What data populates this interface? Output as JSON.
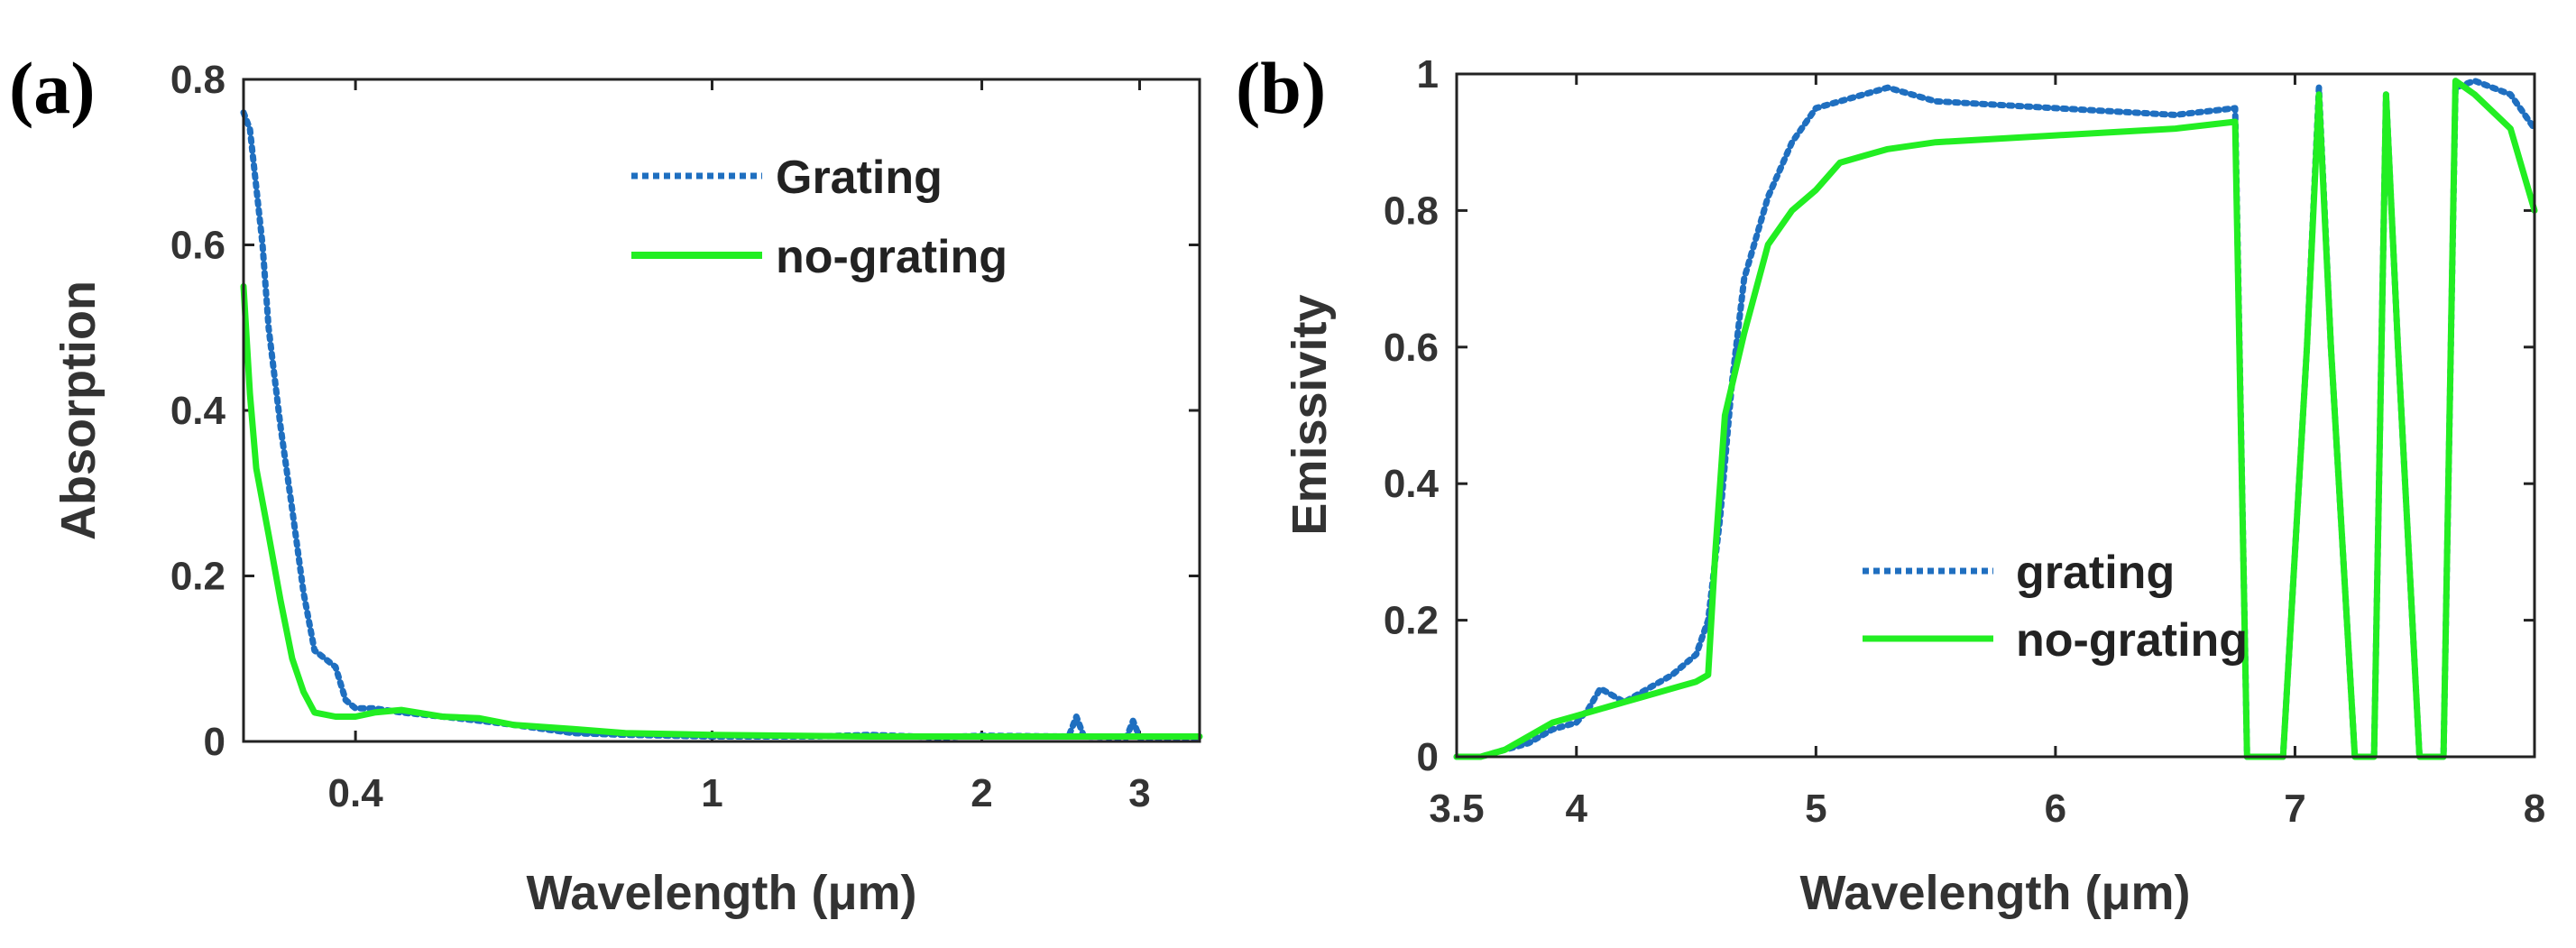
{
  "chart_data": [
    {
      "panel": "(a)",
      "type": "line",
      "xscale": "log",
      "xlabel": "Wavelength (μm)",
      "ylabel": "Absorption",
      "xlim": [
        0.3,
        3.5
      ],
      "ylim": [
        0,
        0.8
      ],
      "xticks": [
        0.4,
        1,
        2,
        3
      ],
      "xtick_labels": [
        "0.4",
        "1",
        "2",
        "3"
      ],
      "yticks": [
        0,
        0.2,
        0.4,
        0.6,
        0.8
      ],
      "ytick_labels": [
        "0",
        "0.2",
        "0.4",
        "0.6",
        "0.8"
      ],
      "legend_position": "top-right",
      "series": [
        {
          "name": "Grating",
          "color": "#1f6fc0",
          "style": "dotted",
          "x": [
            0.3,
            0.305,
            0.31,
            0.315,
            0.32,
            0.33,
            0.34,
            0.35,
            0.36,
            0.37,
            0.38,
            0.39,
            0.4,
            0.42,
            0.45,
            0.5,
            0.55,
            0.6,
            0.7,
            0.8,
            1.0,
            1.3,
            1.5,
            1.8,
            2.0,
            2.5,
            2.55,
            2.6,
            2.9,
            2.95,
            3.0,
            3.5
          ],
          "y": [
            0.76,
            0.74,
            0.67,
            0.6,
            0.5,
            0.38,
            0.28,
            0.18,
            0.11,
            0.1,
            0.09,
            0.05,
            0.04,
            0.04,
            0.035,
            0.03,
            0.025,
            0.02,
            0.01,
            0.008,
            0.006,
            0.006,
            0.008,
            0.005,
            0.007,
            0.006,
            0.03,
            0.006,
            0.005,
            0.025,
            0.005,
            0.005
          ]
        },
        {
          "name": "no-grating",
          "color": "#22ee22",
          "style": "solid",
          "x": [
            0.3,
            0.305,
            0.31,
            0.32,
            0.33,
            0.34,
            0.35,
            0.36,
            0.38,
            0.4,
            0.42,
            0.45,
            0.5,
            0.55,
            0.6,
            0.7,
            0.8,
            1.0,
            1.5,
            2.0,
            3.0,
            3.5
          ],
          "y": [
            0.55,
            0.42,
            0.33,
            0.25,
            0.17,
            0.1,
            0.06,
            0.035,
            0.03,
            0.03,
            0.035,
            0.038,
            0.03,
            0.028,
            0.02,
            0.015,
            0.01,
            0.008,
            0.006,
            0.006,
            0.006,
            0.006
          ]
        }
      ]
    },
    {
      "panel": "(b)",
      "type": "line",
      "xscale": "linear",
      "xlabel": "Wavelength (μm)",
      "ylabel": "Emissivity",
      "xlim": [
        3.5,
        8
      ],
      "ylim": [
        0,
        1
      ],
      "xticks": [
        3.5,
        4,
        5,
        6,
        7,
        8
      ],
      "xtick_labels": [
        "3.5",
        "4",
        "5",
        "6",
        "7",
        "8"
      ],
      "yticks": [
        0,
        0.2,
        0.4,
        0.6,
        0.8,
        1
      ],
      "ytick_labels": [
        "0",
        "0.2",
        "0.4",
        "0.6",
        "0.8",
        "1"
      ],
      "legend_position": "bottom-center",
      "series": [
        {
          "name": "grating",
          "color": "#1f6fc0",
          "style": "dotted",
          "x": [
            3.5,
            3.6,
            3.7,
            3.8,
            3.9,
            4.0,
            4.05,
            4.1,
            4.2,
            4.3,
            4.4,
            4.5,
            4.55,
            4.6,
            4.65,
            4.7,
            4.8,
            4.9,
            5.0,
            5.1,
            5.2,
            5.3,
            5.5,
            6.0,
            6.5,
            6.75,
            6.8,
            6.95,
            7.05,
            7.1,
            7.15,
            7.25,
            7.33,
            7.38,
            7.43,
            7.52,
            7.62,
            7.67,
            7.75,
            7.9,
            8.0
          ],
          "y": [
            0.0,
            0.0,
            0.01,
            0.02,
            0.04,
            0.05,
            0.07,
            0.1,
            0.08,
            0.1,
            0.12,
            0.15,
            0.2,
            0.35,
            0.55,
            0.7,
            0.82,
            0.9,
            0.95,
            0.96,
            0.97,
            0.98,
            0.96,
            0.95,
            0.94,
            0.95,
            0.0,
            0.0,
            0.6,
            0.98,
            0.6,
            0.0,
            0.0,
            0.97,
            0.6,
            0.0,
            0.0,
            0.98,
            0.99,
            0.97,
            0.92
          ]
        },
        {
          "name": "no-grating",
          "color": "#22ee22",
          "style": "solid",
          "x": [
            3.5,
            3.6,
            3.7,
            3.8,
            3.9,
            4.0,
            4.1,
            4.2,
            4.3,
            4.4,
            4.5,
            4.55,
            4.58,
            4.62,
            4.7,
            4.8,
            4.9,
            5.0,
            5.1,
            5.2,
            5.3,
            5.5,
            6.0,
            6.5,
            6.75,
            6.8,
            6.95,
            7.05,
            7.1,
            7.15,
            7.25,
            7.33,
            7.38,
            7.43,
            7.52,
            7.62,
            7.67,
            7.75,
            7.9,
            8.0
          ],
          "y": [
            0.0,
            0.0,
            0.01,
            0.03,
            0.05,
            0.06,
            0.07,
            0.08,
            0.09,
            0.1,
            0.11,
            0.12,
            0.3,
            0.5,
            0.62,
            0.75,
            0.8,
            0.83,
            0.87,
            0.88,
            0.89,
            0.9,
            0.91,
            0.92,
            0.93,
            0.0,
            0.0,
            0.6,
            0.97,
            0.6,
            0.0,
            0.0,
            0.97,
            0.6,
            0.0,
            0.0,
            0.99,
            0.97,
            0.92,
            0.8
          ]
        }
      ]
    }
  ]
}
